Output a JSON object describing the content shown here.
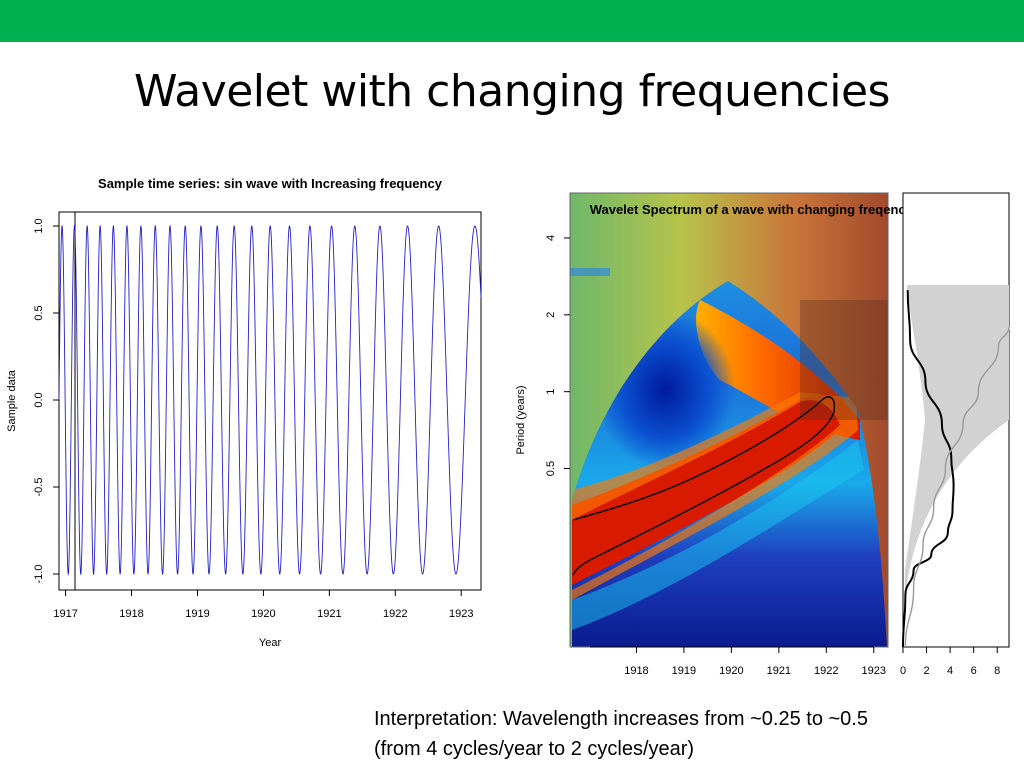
{
  "slide": {
    "title": "Wavelet with changing frequencies",
    "accent_color": "#00b050",
    "interpretation": [
      "Interpretation: Wavelength increases from ~0.25 to ~0.5",
      "(from 4 cycles/year to 2 cycles/year)"
    ]
  },
  "chart_data": [
    {
      "type": "line",
      "title": "Sample time series: sin wave with Increasing frequency",
      "xlabel": "Year",
      "ylabel": "Sample data",
      "xlim": [
        1916.9,
        1923.3
      ],
      "ylim": [
        -1.0,
        1.0
      ],
      "xticks": [
        "1917",
        "1918",
        "1919",
        "1920",
        "1921",
        "1922",
        "1923"
      ],
      "xtick_values": [
        1917,
        1918,
        1919,
        1920,
        1921,
        1922,
        1923
      ],
      "yticks": [
        "-1.0",
        "-0.5",
        "0.0",
        "0.5",
        "1.0"
      ],
      "ytick_values": [
        -1.0,
        -0.5,
        0.0,
        0.5,
        1.0
      ],
      "line_color": "#2020c8",
      "series": [
        {
          "phase0_cycles": 0,
          "freq_start_cycles_per_year": 5.4,
          "freq_end_cycles_per_year": 1.6
        }
      ]
    },
    {
      "type": "heatmap",
      "title": "Wavelet Spectrum of a wave with changing freqency over time",
      "xlabel": "",
      "ylabel": "Period (years)",
      "xticks": [
        "1918",
        "1919",
        "1920",
        "1921",
        "1922",
        "1923"
      ],
      "xtick_values": [
        1918,
        1919,
        1920,
        1921,
        1922,
        1923
      ],
      "xlim": [
        1916.6,
        1923.3
      ],
      "yticks": [
        "0.5",
        "1",
        "2",
        "4"
      ],
      "ytick_values": [
        0.5,
        1,
        2,
        4
      ],
      "ylim": [
        0.1,
        6
      ],
      "ridge": {
        "description": "Band of peak power rising from short period at left to longer period at right",
        "start": {
          "year": 1916.6,
          "period": 0.2
        },
        "end": {
          "year": 1922.3,
          "period": 0.55
        }
      }
    },
    {
      "type": "line",
      "title": "",
      "xlabel": "",
      "ylabel": "",
      "xticks": [
        "0",
        "2",
        "4",
        "6",
        "8"
      ],
      "xtick_values": [
        0,
        2,
        4,
        6,
        8
      ],
      "xlim": [
        0,
        9
      ],
      "series": [
        {
          "name": "",
          "color": "#000000",
          "points": [
            [
              0,
              0.1
            ],
            [
              0.2,
              0.16
            ],
            [
              0.9,
              0.2
            ],
            [
              2.4,
              0.23
            ],
            [
              3.8,
              0.28
            ],
            [
              4.2,
              0.34
            ],
            [
              4.3,
              0.43
            ],
            [
              4.1,
              0.55
            ],
            [
              3.3,
              0.75
            ],
            [
              1.9,
              1.1
            ],
            [
              0.6,
              1.6
            ],
            [
              0.4,
              2.5
            ]
          ]
        },
        {
          "name": "",
          "color": "#999999",
          "points": [
            [
              0.2,
              0.1
            ],
            [
              0.9,
              0.17
            ],
            [
              1.7,
              0.25
            ],
            [
              2.6,
              0.35
            ],
            [
              3.6,
              0.5
            ],
            [
              5.1,
              0.75
            ],
            [
              6.4,
              1.0
            ],
            [
              8.1,
              1.5
            ],
            [
              9.0,
              1.8
            ]
          ]
        }
      ]
    }
  ]
}
